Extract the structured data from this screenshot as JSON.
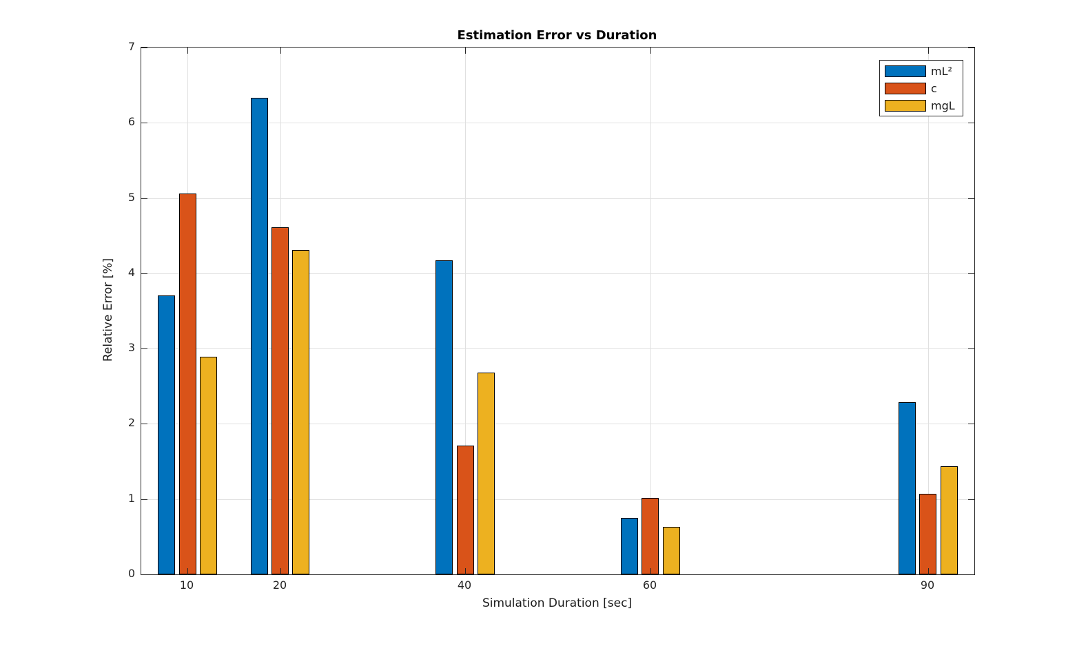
{
  "chart_data": {
    "type": "bar",
    "title": "Estimation Error vs Duration",
    "xlabel": "Simulation Duration [sec]",
    "ylabel": "Relative Error [%]",
    "x": [
      10,
      20,
      40,
      60,
      90
    ],
    "x_tick_labels": [
      "10",
      "20",
      "40",
      "60",
      "90"
    ],
    "series": [
      {
        "name": "mL²",
        "color": "#0072BD",
        "values": [
          3.71,
          6.33,
          4.17,
          0.75,
          2.29
        ]
      },
      {
        "name": "c",
        "color": "#D95319",
        "values": [
          5.06,
          4.61,
          1.71,
          1.02,
          1.07
        ]
      },
      {
        "name": "mgL",
        "color": "#EDB120",
        "values": [
          2.89,
          4.31,
          2.68,
          0.63,
          1.44
        ]
      }
    ],
    "xlim": [
      5,
      95
    ],
    "ylim": [
      0,
      7
    ],
    "yticks": [
      0,
      1,
      2,
      3,
      4,
      5,
      6,
      7
    ],
    "y_tick_labels": [
      "0",
      "1",
      "2",
      "3",
      "4",
      "5",
      "6",
      "7"
    ],
    "grid": true,
    "legend_position": "top-right",
    "bar_edge_color": "#000000",
    "axis_color": "#262626",
    "grid_color": "#E0E0E0",
    "background_color": "#FFFFFF"
  }
}
